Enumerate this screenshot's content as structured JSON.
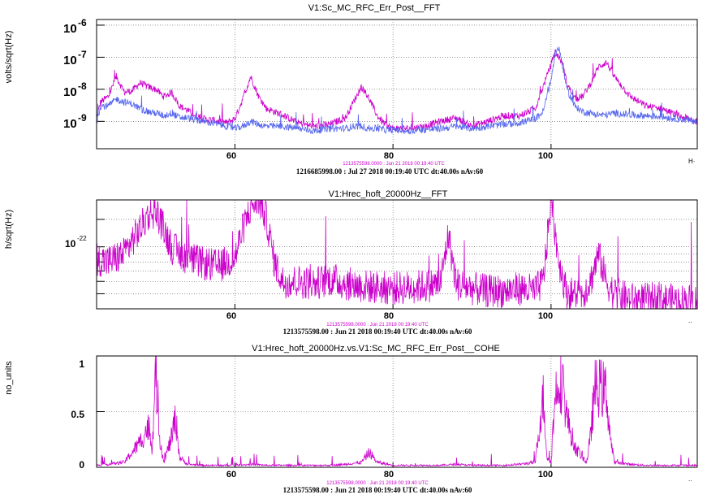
{
  "colors": {
    "magenta": "#cc00cc",
    "blue": "#5566ee",
    "grid": "#555555"
  },
  "chart_data": [
    {
      "type": "line",
      "title": "V1:Sc_MC_RFC_Err_Post__FFT",
      "ylabel": "volts/sqrt(Hz)",
      "xlabel": "",
      "x_unit_label": "H·",
      "scale_y": "log",
      "xlim": [
        42.5,
        118.5
      ],
      "ylim": [
        1.4e-10,
        1.5e-06
      ],
      "grid": true,
      "xticks": [
        "60",
        "80",
        "100"
      ],
      "yticks": [
        "10",
        "10",
        "10",
        "10"
      ],
      "ytick_exponents": [
        "-6",
        "-7",
        "-8",
        "-9"
      ],
      "subtitle": "1213575598.0000 : Jun 21 2018 00:19:40 UTC",
      "footer": "1216685998.00 : Jul 27 2018 00:19:40 UTC dt:40.00s nAv:60",
      "series": [
        {
          "color": "#cc00cc",
          "x": [
            42.5,
            43,
            44,
            45,
            46,
            47,
            48,
            49,
            50,
            51,
            52,
            53,
            54,
            55,
            56,
            57,
            58,
            59,
            60,
            61,
            62,
            63,
            64,
            66,
            68,
            70,
            72,
            74,
            75,
            76,
            77,
            78,
            79,
            80,
            82,
            84,
            86,
            88,
            90,
            92,
            94,
            96,
            98,
            99,
            100,
            100.5,
            101,
            101.5,
            102,
            103,
            104,
            105,
            106,
            107,
            108,
            110,
            112,
            114,
            116,
            118.5
          ],
          "y": [
            1.2e-09,
            4e-09,
            6e-09,
            2.5e-08,
            8e-09,
            9e-09,
            1.6e-08,
            1.2e-08,
            1e-08,
            6e-09,
            8e-09,
            3e-09,
            2.2e-09,
            1.5e-09,
            1.2e-09,
            1.1e-09,
            1e-09,
            9e-10,
            1.2e-09,
            5e-09,
            2.5e-08,
            6e-09,
            2.5e-09,
            1.6e-09,
            9e-10,
            7e-10,
            8e-10,
            1.3e-09,
            4e-09,
            1.2e-08,
            5e-09,
            1.5e-09,
            8e-10,
            6e-10,
            6e-10,
            7e-10,
            1e-09,
            1.3e-09,
            7e-10,
            1e-09,
            1.5e-09,
            1.5e-09,
            2.5e-09,
            1.2e-08,
            6e-08,
            1.5e-07,
            1e-07,
            6e-08,
            1.5e-08,
            5e-09,
            6e-09,
            1.5e-08,
            5e-08,
            7e-08,
            2.5e-08,
            6e-09,
            3e-09,
            2.5e-09,
            1.5e-09,
            1e-09
          ]
        },
        {
          "color": "#5566ee",
          "x": [
            42.5,
            43,
            44,
            45,
            46,
            47,
            48,
            49,
            50,
            51,
            52,
            53,
            54,
            55,
            56,
            57,
            58,
            59,
            60,
            61,
            62,
            63,
            64,
            66,
            68,
            70,
            72,
            74,
            75,
            76,
            77,
            78,
            79,
            80,
            82,
            84,
            86,
            88,
            90,
            92,
            94,
            96,
            98,
            99,
            100,
            100.5,
            101,
            101.5,
            102,
            103,
            104,
            105,
            106,
            107,
            108,
            110,
            112,
            114,
            116,
            118.5
          ],
          "y": [
            1e-09,
            3e-09,
            3e-09,
            5e-09,
            4e-09,
            3.5e-09,
            2.5e-09,
            2e-09,
            1.8e-09,
            1.5e-09,
            1.8e-09,
            1.3e-09,
            1.3e-09,
            1.1e-09,
            1e-09,
            9e-10,
            8e-10,
            7e-10,
            6e-10,
            7e-10,
            1e-09,
            8e-10,
            7e-10,
            7e-10,
            6e-10,
            5e-10,
            6e-10,
            6e-10,
            7e-10,
            7e-10,
            6e-10,
            6e-10,
            5.5e-10,
            5.5e-10,
            5e-10,
            5.5e-10,
            6e-10,
            7e-10,
            6e-10,
            7e-10,
            8e-10,
            9e-10,
            1.2e-09,
            2e-09,
            2e-08,
            1.2e-07,
            2e-07,
            5e-08,
            1e-08,
            3e-09,
            2e-09,
            1.8e-09,
            1.6e-09,
            1.6e-09,
            1.8e-09,
            1.6e-09,
            1.5e-09,
            1.4e-09,
            1.2e-09,
            1e-09
          ]
        }
      ]
    },
    {
      "type": "line",
      "title": "V1:Hrec_hoft_20000Hz__FFT",
      "ylabel": "h/sqrt(Hz)",
      "xlabel": "",
      "x_unit_label": "..",
      "scale_y": "log",
      "xlim": [
        42.5,
        118.5
      ],
      "ylim": [
        4e-23,
        2e-22
      ],
      "grid": true,
      "xticks": [
        "60",
        "80",
        "100"
      ],
      "yticks": [
        "10"
      ],
      "ytick_exponents": [
        "-22"
      ],
      "subtitle": "1213575598.0000 : Jun 21 2018 00:19:40 UTC",
      "footer": "1213575598.00 : Jun 21 2018 00:19:40 UTC dt:40.00s nAv:60",
      "series": [
        {
          "color": "#cc00cc",
          "x": [
            42.5,
            44,
            46,
            47,
            48,
            49,
            50,
            51,
            52,
            53,
            54,
            56,
            58,
            59,
            60,
            61,
            62,
            63,
            64,
            65,
            66,
            68,
            70,
            72,
            74,
            76,
            78,
            80,
            82,
            84,
            86,
            87,
            88,
            90,
            92,
            94,
            96,
            98,
            99,
            100,
            101,
            102,
            104,
            105,
            106,
            107,
            108,
            110,
            112,
            114,
            116,
            118.5
          ],
          "y": [
            8.4e-23,
            8e-23,
            9e-23,
            1.1e-22,
            1.3e-22,
            1.6e-22,
            1.7e-22,
            1.3e-22,
            1e-22,
            9e-23,
            8.5e-23,
            7.8e-23,
            7.5e-23,
            8e-23,
            8.5e-23,
            1.3e-22,
            1.8e-22,
            2e-22,
            1.5e-22,
            8e-23,
            6e-23,
            6e-23,
            5.8e-23,
            6.2e-23,
            5.8e-23,
            5.6e-23,
            5.5e-23,
            5.4e-23,
            5.5e-23,
            5.6e-23,
            5.8e-23,
            1.2e-22,
            5.8e-23,
            5.4e-23,
            5.2e-23,
            5.2e-23,
            5.4e-23,
            5.2e-23,
            6e-23,
            2e-22,
            8e-23,
            5e-23,
            5e-23,
            6e-23,
            9e-23,
            6e-23,
            5e-23,
            4.6e-23,
            4.6e-23,
            4.6e-23,
            4.5e-23,
            4.5e-23
          ]
        }
      ]
    },
    {
      "type": "line",
      "title": "V1:Hrec_hoft_20000Hz.vs.V1:Sc_MC_RFC_Err_Post__COHE",
      "ylabel": "no_units",
      "xlabel": "",
      "x_unit_label": "..",
      "scale_y": "linear",
      "xlim": [
        42.5,
        118.5
      ],
      "ylim": [
        0,
        1
      ],
      "grid": true,
      "xticks": [
        "60",
        "80",
        "100"
      ],
      "yticks": [
        "1",
        "0.5",
        "0"
      ],
      "subtitle": "1213575598.0000 : Jun 21 2018 00:19:40 UTC",
      "footer": "1213575598.00 : Jun 21 2018 00:19:40 UTC dt:40.00s nAv:60",
      "series": [
        {
          "color": "#cc00cc",
          "x": [
            42.5,
            44,
            46,
            47,
            48,
            49,
            49.5,
            50,
            50.5,
            51,
            52,
            52.5,
            53,
            54,
            56,
            58,
            60,
            62,
            64,
            66,
            68,
            70,
            72,
            74,
            76,
            77,
            78,
            80,
            82,
            84,
            86,
            88,
            90,
            92,
            94,
            96,
            98,
            98.5,
            99,
            99.5,
            100,
            100.5,
            101,
            101.5,
            102,
            103,
            104,
            104.5,
            105,
            105.5,
            106,
            106.5,
            107,
            107.5,
            108,
            110,
            112,
            114,
            116,
            118.5
          ],
          "y": [
            0.02,
            0.03,
            0.05,
            0.15,
            0.25,
            0.4,
            0.2,
            0.95,
            0.3,
            0.05,
            0.3,
            0.5,
            0.1,
            0.03,
            0.02,
            0.02,
            0.02,
            0.03,
            0.02,
            0.02,
            0.02,
            0.02,
            0.02,
            0.03,
            0.05,
            0.15,
            0.05,
            0.02,
            0.02,
            0.02,
            0.02,
            0.03,
            0.02,
            0.02,
            0.02,
            0.03,
            0.05,
            0.4,
            0.7,
            0.1,
            0.05,
            0.7,
            0.92,
            0.8,
            0.5,
            0.2,
            0.1,
            0.05,
            0.3,
            0.78,
            0.8,
            0.78,
            0.75,
            0.3,
            0.05,
            0.03,
            0.02,
            0.02,
            0.02,
            0.02
          ]
        }
      ]
    }
  ]
}
